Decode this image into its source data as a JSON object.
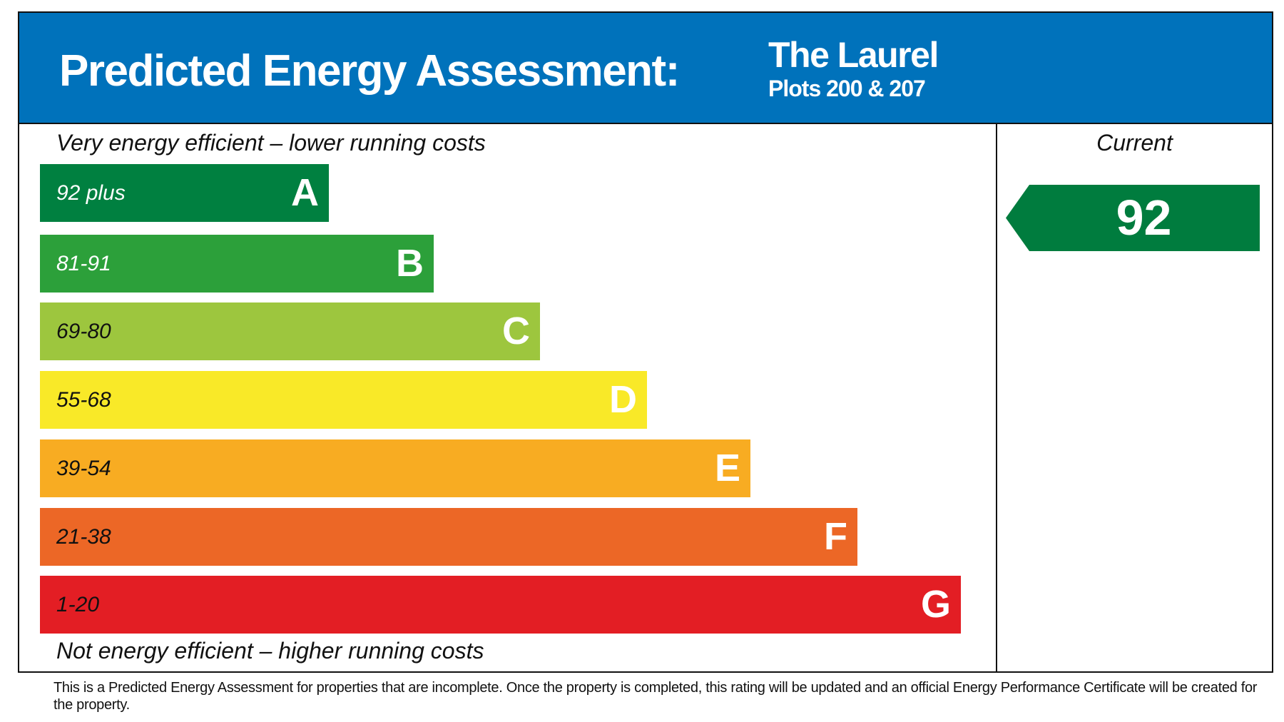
{
  "header": {
    "title": "Predicted Energy Assessment:",
    "property": "The Laurel",
    "plots": "Plots 200 & 207",
    "background": "#0072bb"
  },
  "chart_data": {
    "type": "bar",
    "top_caption": "Very energy efficient – lower running costs",
    "bottom_caption": "Not energy efficient – higher running costs",
    "bands": [
      {
        "letter": "A",
        "range": "92 plus",
        "color": "#008040",
        "label_color": "#ffffff"
      },
      {
        "letter": "B",
        "range": "81-91",
        "color": "#2ca03a",
        "label_color": "#ffffff"
      },
      {
        "letter": "C",
        "range": "69-80",
        "color": "#9dc63e",
        "label_color": "#111111"
      },
      {
        "letter": "D",
        "range": "55-68",
        "color": "#f9e928",
        "label_color": "#111111"
      },
      {
        "letter": "E",
        "range": "39-54",
        "color": "#f8ac22",
        "label_color": "#111111"
      },
      {
        "letter": "F",
        "range": "21-38",
        "color": "#ec6726",
        "label_color": "#111111"
      },
      {
        "letter": "G",
        "range": "1-20",
        "color": "#e31e24",
        "label_color": "#111111"
      }
    ],
    "current": {
      "label": "Current",
      "value": "92",
      "band": "A",
      "color": "#007c3e"
    }
  },
  "footer": "This is a Predicted Energy Assessment for properties that are incomplete. Once the property is completed, this rating will be updated and an official Energy Performance Certificate will be created for the property."
}
